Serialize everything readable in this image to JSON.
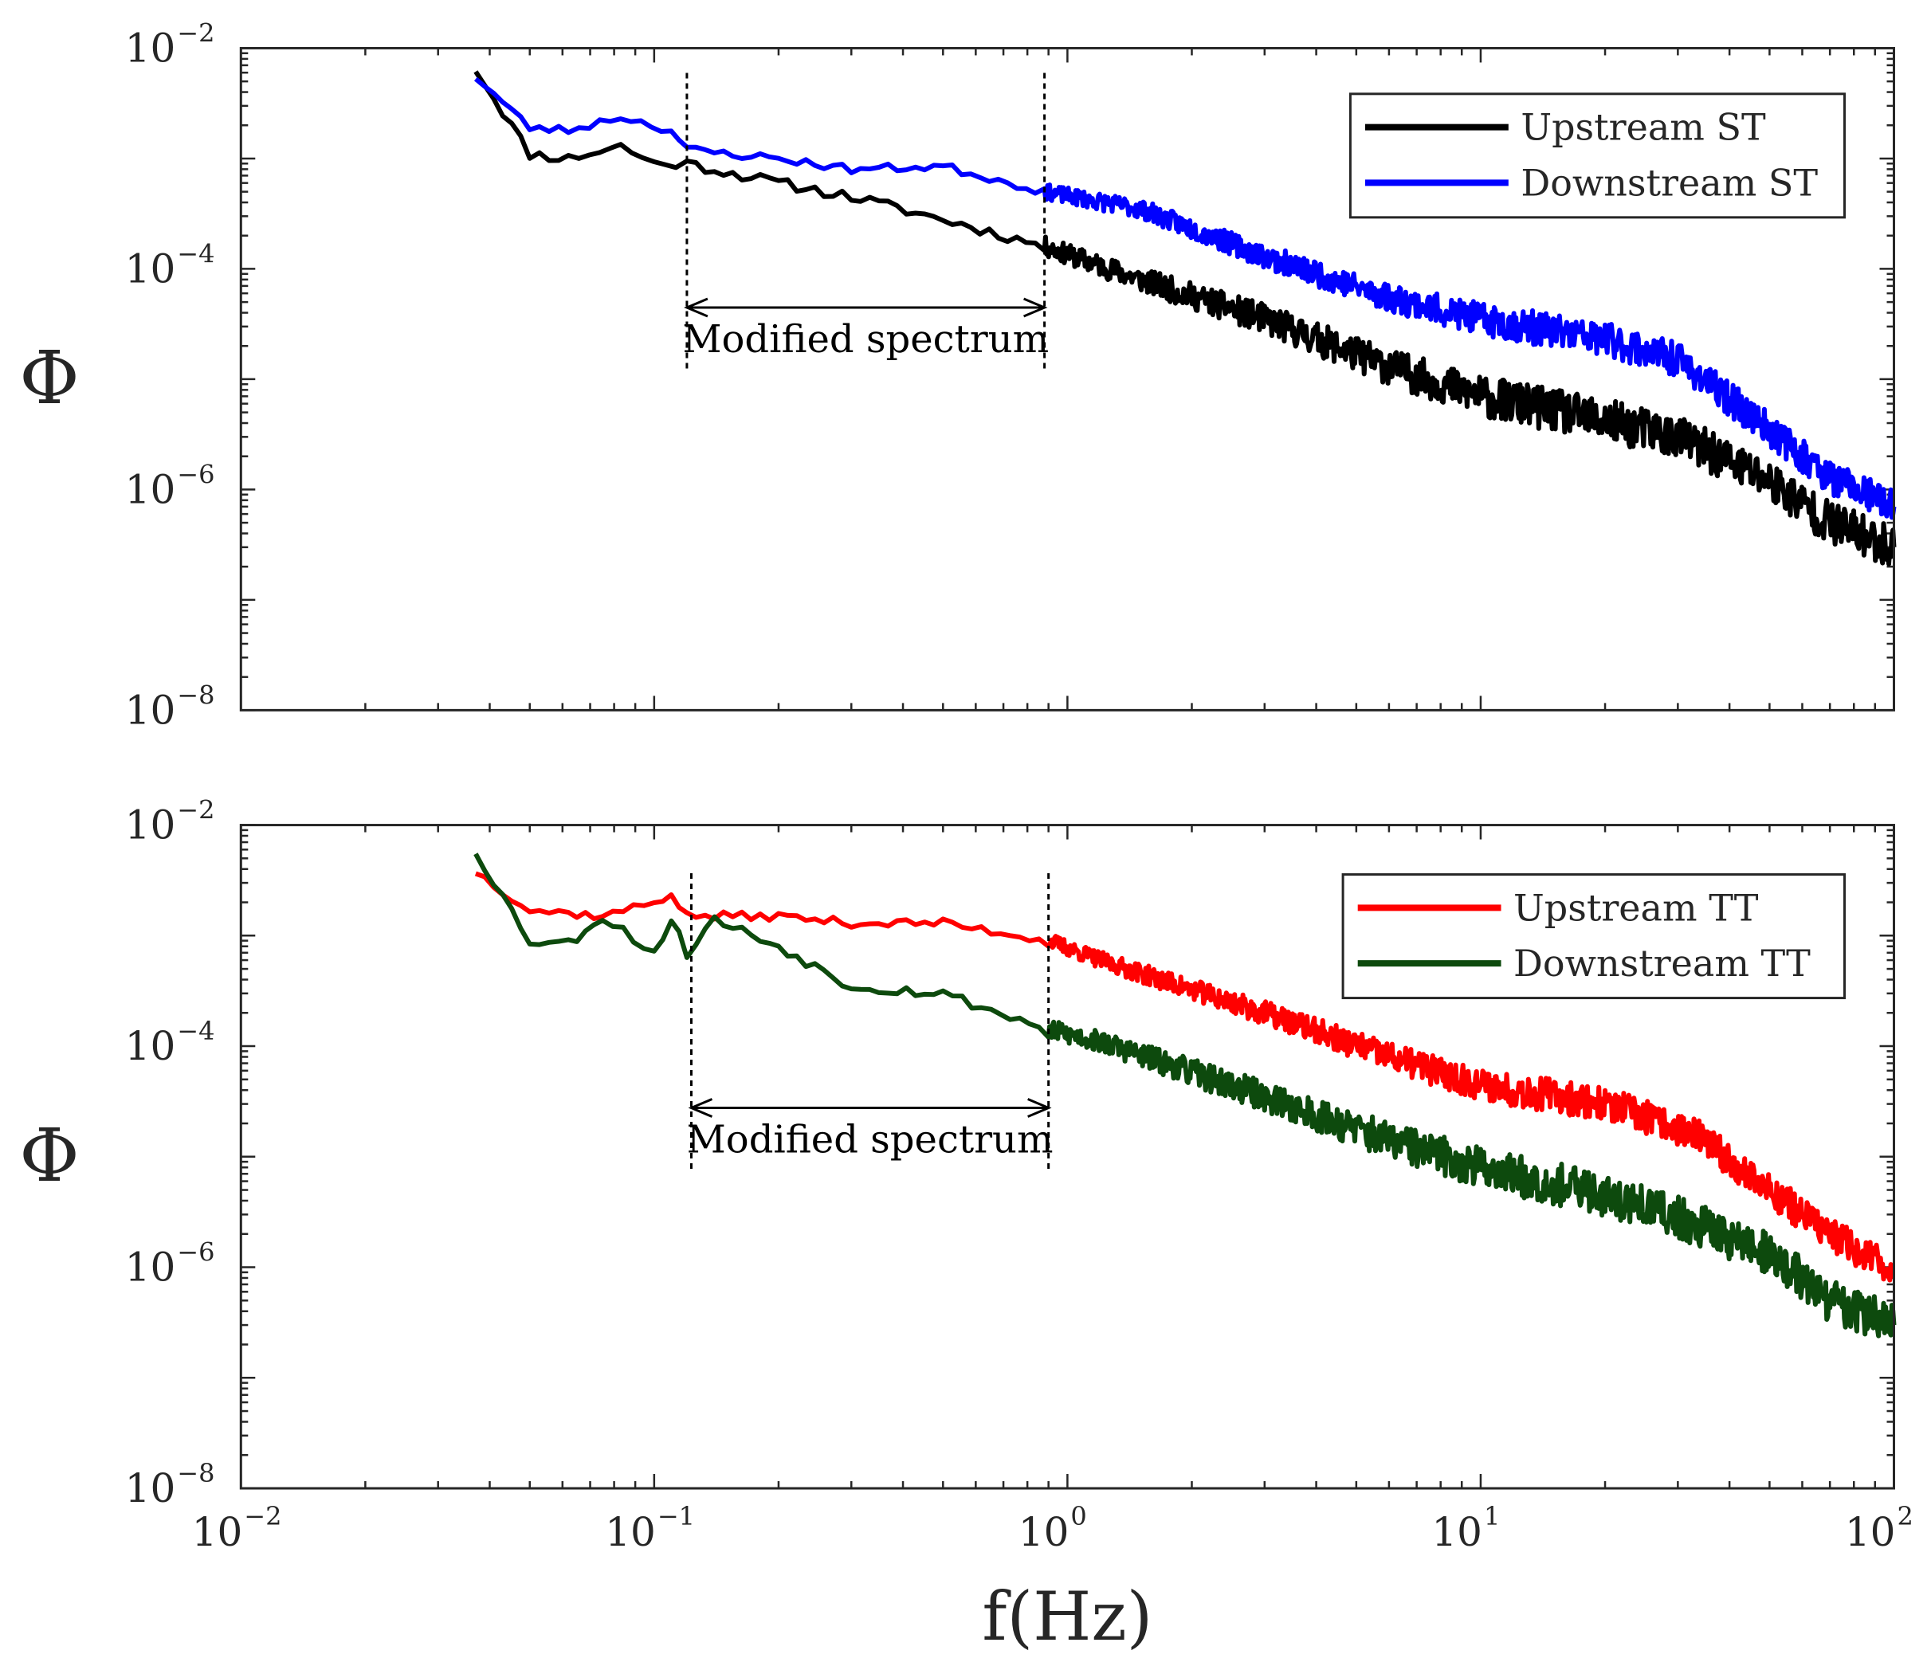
{
  "chart_data": [
    {
      "type": "line",
      "panel": "top",
      "xscale": "log",
      "yscale": "log",
      "xlim": [
        0.01,
        100
      ],
      "ylim": [
        1e-08,
        0.01
      ],
      "x_ticks": [
        0.01,
        0.1,
        1,
        10,
        100
      ],
      "y_ticks": [
        1e-08,
        1e-06,
        0.0001,
        0.01
      ],
      "y_tick_labels": [
        {
          "base": "10",
          "exp": "−8"
        },
        {
          "base": "10",
          "exp": "−6"
        },
        {
          "base": "10",
          "exp": "−4"
        },
        {
          "base": "10",
          "exp": "−2"
        }
      ],
      "ylabel": "Φ",
      "legend": "top-right",
      "series": [
        {
          "name": "Upstream ST",
          "color": "#000000",
          "seed": 11,
          "noise": 0.14,
          "points": [
            [
              0.037,
              0.0065
            ],
            [
              0.05,
              0.0011
            ],
            [
              0.062,
              0.001
            ],
            [
              0.083,
              0.0013
            ],
            [
              0.1,
              0.0009
            ],
            [
              0.12,
              0.0009
            ],
            [
              0.2,
              0.0006
            ],
            [
              0.3,
              0.00045
            ],
            [
              0.5,
              0.00028
            ],
            [
              0.88,
              0.00016
            ],
            [
              1.5,
              8e-05
            ],
            [
              3,
              3.5e-05
            ],
            [
              6,
              1.3e-05
            ],
            [
              10,
              7e-06
            ],
            [
              20,
              4.2e-06
            ],
            [
              30,
              3e-06
            ],
            [
              50,
              1.2e-06
            ],
            [
              70,
              5e-07
            ],
            [
              100,
              3e-07
            ]
          ]
        },
        {
          "name": "Downstream ST",
          "color": "#0000ff",
          "seed": 23,
          "noise": 0.11,
          "points": [
            [
              0.037,
              0.0055
            ],
            [
              0.05,
              0.0019
            ],
            [
              0.062,
              0.0018
            ],
            [
              0.083,
              0.0024
            ],
            [
              0.11,
              0.0018
            ],
            [
              0.12,
              0.0012
            ],
            [
              0.2,
              0.001
            ],
            [
              0.3,
              0.0008
            ],
            [
              0.5,
              0.00085
            ],
            [
              0.88,
              0.0005
            ],
            [
              1.5,
              0.00035
            ],
            [
              3,
              0.00013
            ],
            [
              6,
              5.5e-05
            ],
            [
              10,
              3.5e-05
            ],
            [
              20,
              2.3e-05
            ],
            [
              30,
              1.5e-05
            ],
            [
              50,
              3.5e-06
            ],
            [
              70,
              1.3e-06
            ],
            [
              100,
              7e-07
            ]
          ]
        }
      ]
    },
    {
      "type": "line",
      "panel": "bottom",
      "xscale": "log",
      "yscale": "log",
      "xlim": [
        0.01,
        100
      ],
      "ylim": [
        1e-08,
        0.01
      ],
      "x_ticks": [
        0.01,
        0.1,
        1,
        10,
        100
      ],
      "x_tick_labels": [
        {
          "base": "10",
          "exp": "−2"
        },
        {
          "base": "10",
          "exp": "−1"
        },
        {
          "base": "10",
          "exp": "0"
        },
        {
          "base": "10",
          "exp": "1"
        },
        {
          "base": "10",
          "exp": "2"
        }
      ],
      "y_ticks": [
        1e-08,
        1e-06,
        0.0001,
        0.01
      ],
      "y_tick_labels": [
        {
          "base": "10",
          "exp": "−8"
        },
        {
          "base": "10",
          "exp": "−6"
        },
        {
          "base": "10",
          "exp": "−4"
        },
        {
          "base": "10",
          "exp": "−2"
        }
      ],
      "ylabel": "Φ",
      "xlabel": "f(Hz)",
      "legend": "top-right",
      "series": [
        {
          "name": "Upstream TT",
          "color": "#ff0000",
          "seed": 37,
          "noise": 0.11,
          "points": [
            [
              0.037,
              0.0038
            ],
            [
              0.05,
              0.0017
            ],
            [
              0.062,
              0.0016
            ],
            [
              0.075,
              0.0015
            ],
            [
              0.1,
              0.002
            ],
            [
              0.11,
              0.0024
            ],
            [
              0.12,
              0.0015
            ],
            [
              0.2,
              0.0015
            ],
            [
              0.3,
              0.0013
            ],
            [
              0.5,
              0.0013
            ],
            [
              0.9,
              0.0009
            ],
            [
              1.2,
              0.0006
            ],
            [
              3,
              0.0002
            ],
            [
              6,
              8e-05
            ],
            [
              10,
              4.5e-05
            ],
            [
              20,
              3e-05
            ],
            [
              33,
              1.6e-05
            ],
            [
              50,
              5e-06
            ],
            [
              70,
              2e-06
            ],
            [
              100,
              9e-07
            ]
          ]
        },
        {
          "name": "Downstream TT",
          "color": "#0d4a0d",
          "seed": 53,
          "noise": 0.14,
          "points": [
            [
              0.037,
              0.0058
            ],
            [
              0.05,
              0.0009
            ],
            [
              0.062,
              0.00085
            ],
            [
              0.075,
              0.0015
            ],
            [
              0.1,
              0.0007
            ],
            [
              0.11,
              0.0014
            ],
            [
              0.12,
              0.0007
            ],
            [
              0.14,
              0.0014
            ],
            [
              0.2,
              0.0008
            ],
            [
              0.3,
              0.00035
            ],
            [
              0.5,
              0.0003
            ],
            [
              0.9,
              0.00014
            ],
            [
              1.2,
              0.00011
            ],
            [
              3,
              3.5e-05
            ],
            [
              6,
              1.4e-05
            ],
            [
              10,
              8e-06
            ],
            [
              20,
              4.5e-06
            ],
            [
              33,
              2.5e-06
            ],
            [
              50,
              1.3e-06
            ],
            [
              70,
              5e-07
            ],
            [
              100,
              3e-07
            ]
          ]
        }
      ]
    }
  ],
  "annotations": {
    "top": {
      "text": "Modified spectrum",
      "x_start": 0.12,
      "x_end": 0.88
    },
    "bottom": {
      "text": "Modified spectrum",
      "x_start": 0.123,
      "x_end": 0.9
    }
  }
}
